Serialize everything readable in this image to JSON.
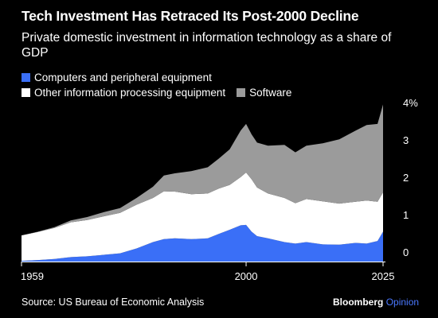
{
  "chart_data": {
    "type": "area",
    "stacked": true,
    "title": "Tech Investment Has Retraced Its Post-2000 Decline",
    "subtitle": "Private domestic investment in information technology as a share of GDP",
    "xlim": [
      1959,
      2025
    ],
    "ylim": [
      0,
      4.4
    ],
    "x_ticks": [
      "1959",
      "2000",
      "2025"
    ],
    "y_ticks": [
      {
        "value": 0,
        "label": "0"
      },
      {
        "value": 1,
        "label": "1"
      },
      {
        "value": 2,
        "label": "2"
      },
      {
        "value": 3,
        "label": "3"
      },
      {
        "value": 4,
        "label": "4%"
      }
    ],
    "legend_position": "top-left",
    "grid": false,
    "x": [
      1959,
      1962,
      1965,
      1968,
      1971,
      1974,
      1977,
      1980,
      1983,
      1985,
      1987,
      1990,
      1993,
      1995,
      1997,
      1999,
      2000,
      2001,
      2002,
      2004,
      2007,
      2009,
      2011,
      2014,
      2017,
      2020,
      2022,
      2024,
      2025
    ],
    "series": [
      {
        "name": "Computers and peripheral equipment",
        "color": "#3a6ff7",
        "values": [
          0.02,
          0.04,
          0.07,
          0.12,
          0.14,
          0.18,
          0.22,
          0.35,
          0.52,
          0.6,
          0.62,
          0.6,
          0.62,
          0.74,
          0.85,
          0.97,
          0.98,
          0.8,
          0.68,
          0.62,
          0.52,
          0.48,
          0.52,
          0.46,
          0.45,
          0.5,
          0.48,
          0.55,
          0.8
        ]
      },
      {
        "name": "Other information processing equipment",
        "color": "#ffffff",
        "values": [
          0.68,
          0.75,
          0.83,
          0.93,
          0.97,
          1.03,
          1.08,
          1.17,
          1.18,
          1.28,
          1.25,
          1.2,
          1.2,
          1.21,
          1.2,
          1.29,
          1.4,
          1.4,
          1.3,
          1.2,
          1.18,
          1.08,
          1.15,
          1.15,
          1.1,
          1.1,
          1.15,
          1.05,
          1.05
        ]
      },
      {
        "name": "Software",
        "color": "#9b9b9b",
        "values": [
          0.0,
          0.01,
          0.02,
          0.05,
          0.08,
          0.11,
          0.13,
          0.18,
          0.3,
          0.42,
          0.49,
          0.62,
          0.7,
          0.8,
          0.95,
          1.24,
          1.3,
          1.2,
          1.2,
          1.28,
          1.42,
          1.36,
          1.43,
          1.55,
          1.72,
          1.9,
          2.02,
          2.08,
          2.35
        ]
      }
    ]
  },
  "footer": {
    "source": "Source: US Bureau of Economic Analysis",
    "brand": "Bloomberg",
    "brand_suffix": "Opinion"
  }
}
